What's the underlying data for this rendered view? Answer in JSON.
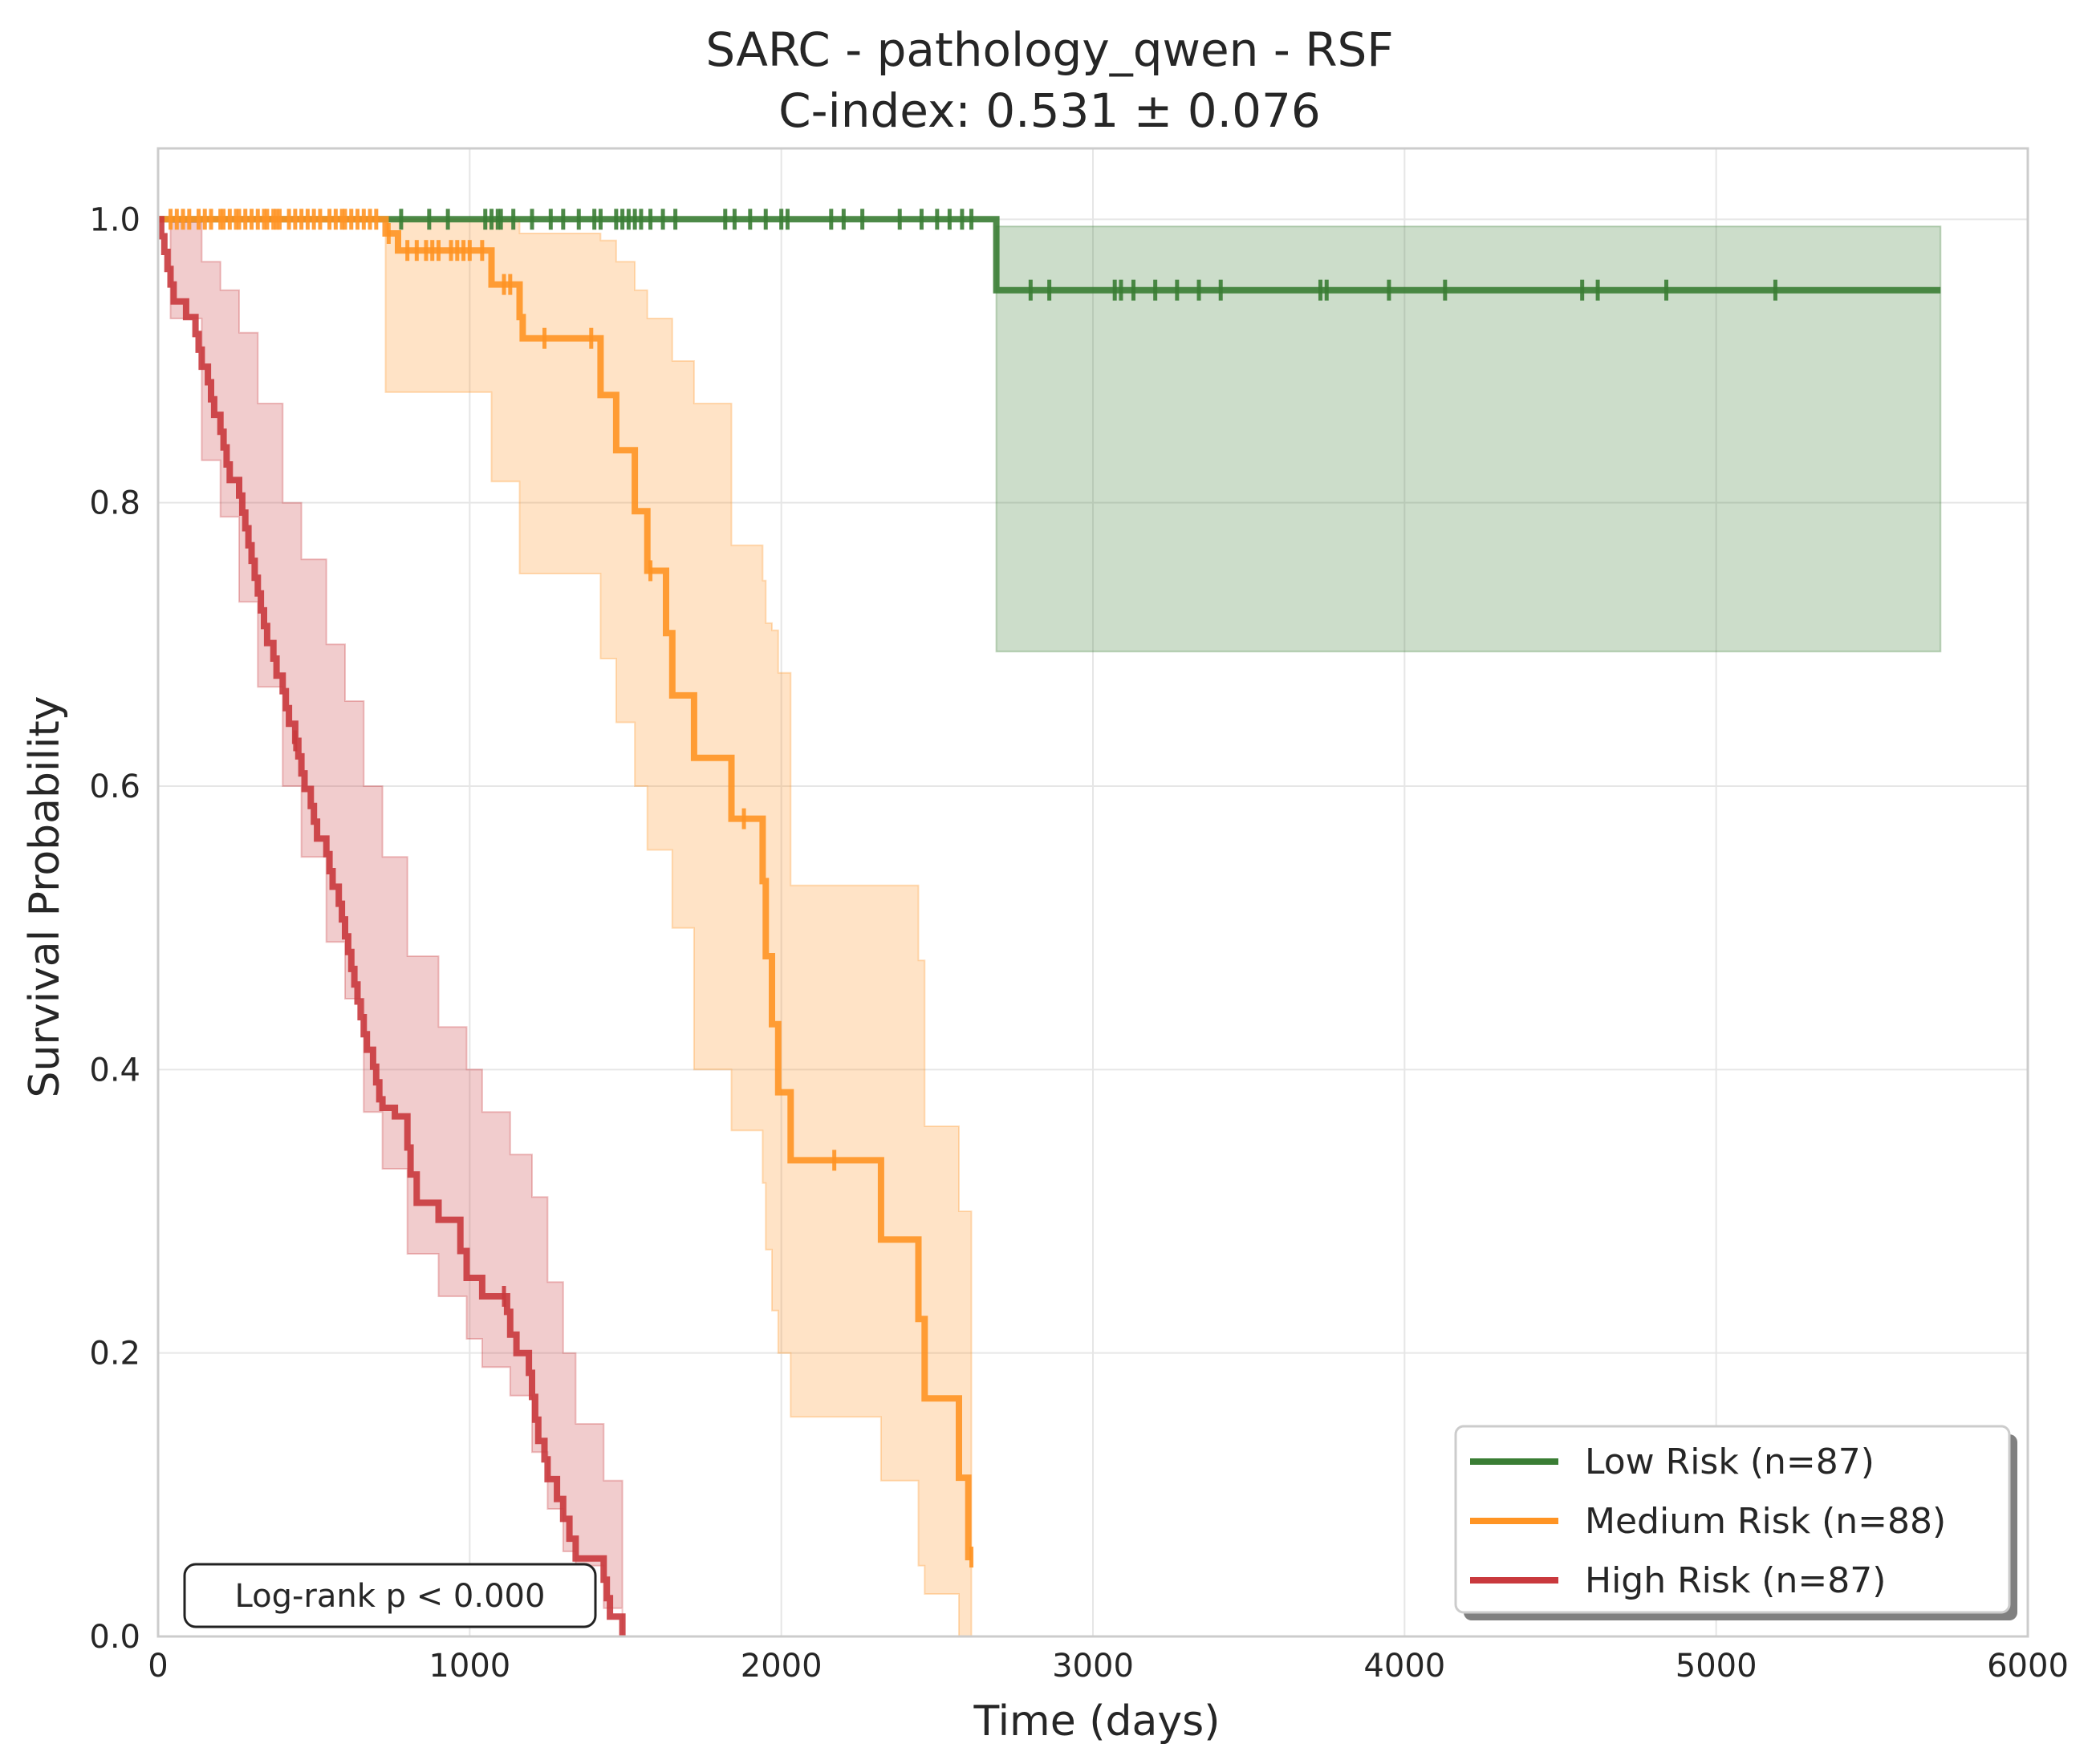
{
  "chart_data": {
    "type": "line",
    "title": "SARC - pathology_qwen - RSF",
    "subtitle": "C-index: 0.531 ± 0.076",
    "xlabel": "Time (days)",
    "ylabel": "Survival Probability",
    "xlim": [
      0,
      6000
    ],
    "ylim": [
      0,
      1.05
    ],
    "xticks": [
      "0",
      "1000",
      "2000",
      "3000",
      "4000",
      "5000",
      "6000"
    ],
    "yticks": [
      "0.0",
      "0.2",
      "0.4",
      "0.6",
      "0.8",
      "1.0"
    ],
    "grid": true,
    "legend_position": "lower-right",
    "annotation": "Log-rank p < 0.000",
    "series": [
      {
        "name": "Low Risk (n=87)",
        "color": "#3a7d34",
        "steps": [
          [
            0,
            1.0
          ],
          [
            2690,
            1.0
          ],
          [
            2690,
            0.95
          ],
          [
            5720,
            0.95
          ]
        ],
        "ci": [
          [
            2690,
            0.695,
            0.995
          ],
          [
            5720,
            0.695,
            0.995
          ]
        ],
        "censor_times": [
          780,
          870,
          930,
          1050,
          1070,
          1090,
          1100,
          1140,
          1200,
          1260,
          1300,
          1350,
          1400,
          1420,
          1470,
          1490,
          1510,
          1530,
          1550,
          1580,
          1620,
          1660,
          1820,
          1850,
          1900,
          1950,
          2000,
          2020,
          2160,
          2200,
          2260,
          2380,
          2450,
          2500,
          2540,
          2580,
          2610,
          2800,
          2860,
          3070,
          3090,
          3130,
          3200,
          3270,
          3340,
          3410,
          3730,
          3750,
          3950,
          4130,
          4570,
          4620,
          4840,
          5190
        ]
      },
      {
        "name": "Medium Risk (n=88)",
        "color": "#ff9424",
        "steps": [
          [
            0,
            1.0
          ],
          [
            730,
            1.0
          ],
          [
            730,
            0.99
          ],
          [
            770,
            0.99
          ],
          [
            770,
            0.978
          ],
          [
            1070,
            0.978
          ],
          [
            1070,
            0.954
          ],
          [
            1160,
            0.954
          ],
          [
            1160,
            0.931
          ],
          [
            1170,
            0.931
          ],
          [
            1170,
            0.916
          ],
          [
            1420,
            0.916
          ],
          [
            1420,
            0.876
          ],
          [
            1470,
            0.876
          ],
          [
            1470,
            0.837
          ],
          [
            1530,
            0.837
          ],
          [
            1530,
            0.794
          ],
          [
            1570,
            0.794
          ],
          [
            1570,
            0.752
          ],
          [
            1630,
            0.752
          ],
          [
            1630,
            0.708
          ],
          [
            1650,
            0.708
          ],
          [
            1650,
            0.664
          ],
          [
            1720,
            0.664
          ],
          [
            1720,
            0.62
          ],
          [
            1840,
            0.62
          ],
          [
            1840,
            0.577
          ],
          [
            1940,
            0.577
          ],
          [
            1940,
            0.533
          ],
          [
            1950,
            0.533
          ],
          [
            1950,
            0.48
          ],
          [
            1970,
            0.48
          ],
          [
            1970,
            0.432
          ],
          [
            1990,
            0.432
          ],
          [
            1990,
            0.384
          ],
          [
            2030,
            0.384
          ],
          [
            2030,
            0.336
          ],
          [
            2320,
            0.336
          ],
          [
            2320,
            0.28
          ],
          [
            2440,
            0.28
          ],
          [
            2440,
            0.224
          ],
          [
            2460,
            0.224
          ],
          [
            2460,
            0.168
          ],
          [
            2570,
            0.168
          ],
          [
            2570,
            0.112
          ],
          [
            2600,
            0.112
          ],
          [
            2600,
            0.056
          ],
          [
            2610,
            0.056
          ]
        ],
        "ci": [
          [
            0,
            1.0,
            1.0
          ],
          [
            730,
            0.878,
            1.0
          ],
          [
            1070,
            0.815,
            1.0
          ],
          [
            1160,
            0.75,
            0.99
          ],
          [
            1420,
            0.69,
            0.985
          ],
          [
            1470,
            0.645,
            0.97
          ],
          [
            1530,
            0.6,
            0.95
          ],
          [
            1570,
            0.555,
            0.93
          ],
          [
            1650,
            0.5,
            0.9
          ],
          [
            1720,
            0.4,
            0.87
          ],
          [
            1840,
            0.357,
            0.77
          ],
          [
            1940,
            0.32,
            0.745
          ],
          [
            1950,
            0.273,
            0.715
          ],
          [
            1970,
            0.23,
            0.71
          ],
          [
            1990,
            0.2,
            0.68
          ],
          [
            2030,
            0.155,
            0.53
          ],
          [
            2320,
            0.11,
            0.53
          ],
          [
            2440,
            0.05,
            0.477
          ],
          [
            2460,
            0.03,
            0.36
          ],
          [
            2570,
            0.0,
            0.3
          ],
          [
            2610,
            0.0,
            0.3
          ]
        ],
        "censor_times": [
          40,
          60,
          80,
          100,
          130,
          150,
          170,
          200,
          210,
          230,
          250,
          260,
          280,
          300,
          320,
          340,
          350,
          370,
          380,
          390,
          420,
          440,
          460,
          480,
          500,
          520,
          550,
          570,
          590,
          600,
          620,
          640,
          660,
          680,
          700,
          740,
          800,
          830,
          860,
          880,
          900,
          940,
          960,
          980,
          1000,
          1040,
          1110,
          1130,
          1240,
          1390,
          1580,
          1880,
          2170,
          2610
        ]
      },
      {
        "name": "High Risk (n=87)",
        "color": "#c9393d",
        "steps": [
          [
            0,
            1.0
          ],
          [
            10,
            0.988
          ],
          [
            20,
            0.977
          ],
          [
            30,
            0.965
          ],
          [
            40,
            0.954
          ],
          [
            50,
            0.942
          ],
          [
            90,
            0.931
          ],
          [
            120,
            0.919
          ],
          [
            130,
            0.908
          ],
          [
            140,
            0.896
          ],
          [
            160,
            0.885
          ],
          [
            170,
            0.873
          ],
          [
            180,
            0.862
          ],
          [
            200,
            0.85
          ],
          [
            210,
            0.839
          ],
          [
            220,
            0.827
          ],
          [
            230,
            0.816
          ],
          [
            260,
            0.805
          ],
          [
            270,
            0.793
          ],
          [
            280,
            0.782
          ],
          [
            290,
            0.77
          ],
          [
            300,
            0.759
          ],
          [
            310,
            0.747
          ],
          [
            320,
            0.736
          ],
          [
            330,
            0.724
          ],
          [
            340,
            0.713
          ],
          [
            350,
            0.701
          ],
          [
            370,
            0.69
          ],
          [
            380,
            0.678
          ],
          [
            400,
            0.667
          ],
          [
            410,
            0.655
          ],
          [
            420,
            0.644
          ],
          [
            440,
            0.632
          ],
          [
            450,
            0.621
          ],
          [
            460,
            0.609
          ],
          [
            470,
            0.598
          ],
          [
            490,
            0.586
          ],
          [
            500,
            0.575
          ],
          [
            510,
            0.563
          ],
          [
            540,
            0.552
          ],
          [
            550,
            0.54
          ],
          [
            560,
            0.529
          ],
          [
            580,
            0.517
          ],
          [
            590,
            0.506
          ],
          [
            600,
            0.494
          ],
          [
            610,
            0.483
          ],
          [
            620,
            0.471
          ],
          [
            630,
            0.46
          ],
          [
            640,
            0.448
          ],
          [
            650,
            0.437
          ],
          [
            660,
            0.425
          ],
          [
            670,
            0.414
          ],
          [
            690,
            0.402
          ],
          [
            700,
            0.391
          ],
          [
            710,
            0.379
          ],
          [
            720,
            0.373
          ],
          [
            760,
            0.367
          ],
          [
            800,
            0.345
          ],
          [
            810,
            0.326
          ],
          [
            830,
            0.306
          ],
          [
            900,
            0.294
          ],
          [
            970,
            0.272
          ],
          [
            990,
            0.253
          ],
          [
            1040,
            0.24
          ],
          [
            1120,
            0.229
          ],
          [
            1130,
            0.213
          ],
          [
            1150,
            0.2
          ],
          [
            1190,
            0.186
          ],
          [
            1200,
            0.169
          ],
          [
            1210,
            0.153
          ],
          [
            1220,
            0.138
          ],
          [
            1240,
            0.125
          ],
          [
            1250,
            0.111
          ],
          [
            1280,
            0.097
          ],
          [
            1300,
            0.083
          ],
          [
            1320,
            0.069
          ],
          [
            1340,
            0.055
          ],
          [
            1430,
            0.04
          ],
          [
            1440,
            0.027
          ],
          [
            1450,
            0.014
          ],
          [
            1470,
            0.014
          ],
          [
            1490,
            0.0
          ]
        ],
        "ci": [
          [
            0,
            1.0,
            1.0
          ],
          [
            40,
            0.93,
            0.998
          ],
          [
            140,
            0.83,
            0.97
          ],
          [
            200,
            0.79,
            0.95
          ],
          [
            260,
            0.73,
            0.92
          ],
          [
            320,
            0.67,
            0.87
          ],
          [
            400,
            0.6,
            0.8
          ],
          [
            460,
            0.55,
            0.76
          ],
          [
            540,
            0.49,
            0.7
          ],
          [
            600,
            0.45,
            0.66
          ],
          [
            660,
            0.37,
            0.6
          ],
          [
            720,
            0.33,
            0.55
          ],
          [
            800,
            0.27,
            0.48
          ],
          [
            900,
            0.24,
            0.43
          ],
          [
            990,
            0.21,
            0.4
          ],
          [
            1040,
            0.19,
            0.37
          ],
          [
            1130,
            0.17,
            0.34
          ],
          [
            1200,
            0.13,
            0.31
          ],
          [
            1250,
            0.09,
            0.25
          ],
          [
            1300,
            0.06,
            0.2
          ],
          [
            1340,
            0.05,
            0.15
          ],
          [
            1430,
            0.02,
            0.11
          ],
          [
            1490,
            0.0,
            0.07
          ]
        ],
        "censor_times": [
          440,
          1110
        ]
      }
    ]
  }
}
